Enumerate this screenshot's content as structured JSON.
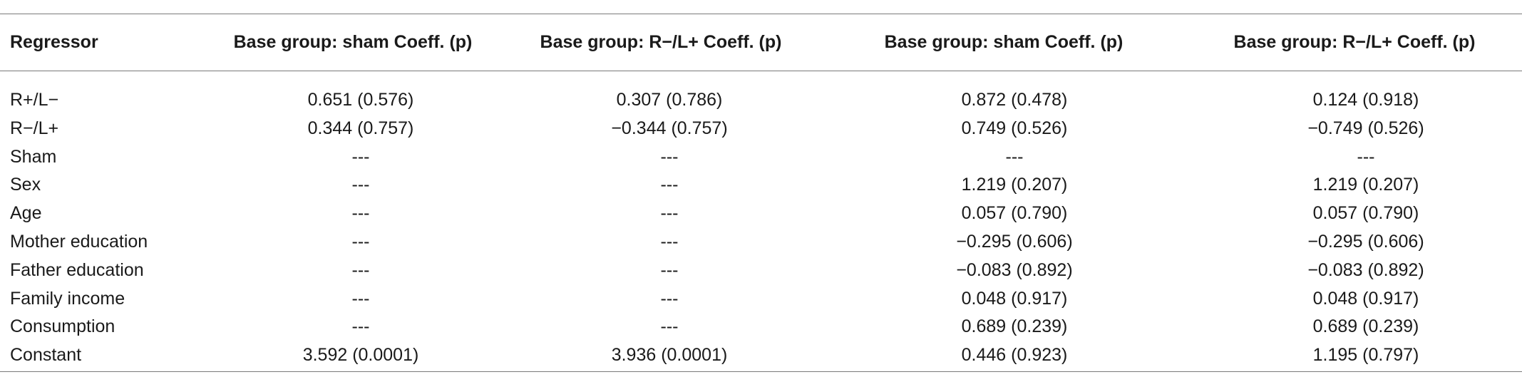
{
  "table": {
    "header": [
      "Regressor",
      "Base group: sham Coeff. (p)",
      "Base group: R−/L+ Coeff. (p)",
      "Base group: sham Coeff. (p)",
      "Base group: R−/L+ Coeff. (p)"
    ],
    "rows": [
      [
        "R+/L−",
        "0.651 (0.576)",
        "0.307 (0.786)",
        "0.872 (0.478)",
        "0.124 (0.918)"
      ],
      [
        "R−/L+",
        "0.344 (0.757)",
        "−0.344 (0.757)",
        "0.749 (0.526)",
        "−0.749 (0.526)"
      ],
      [
        "Sham",
        "---",
        "---",
        "---",
        "---"
      ],
      [
        "Sex",
        "---",
        "---",
        "1.219 (0.207)",
        "1.219 (0.207)"
      ],
      [
        "Age",
        "---",
        "---",
        "0.057 (0.790)",
        "0.057 (0.790)"
      ],
      [
        "Mother education",
        "---",
        "---",
        "−0.295 (0.606)",
        "−0.295 (0.606)"
      ],
      [
        "Father education",
        "---",
        "---",
        "−0.083 (0.892)",
        "−0.083 (0.892)"
      ],
      [
        "Family income",
        "---",
        "---",
        "0.048 (0.917)",
        "0.048 (0.917)"
      ],
      [
        "Consumption",
        "---",
        "---",
        "0.689 (0.239)",
        "0.689 (0.239)"
      ],
      [
        "Constant",
        "3.592 (0.0001)",
        "3.936 (0.0001)",
        "0.446 (0.923)",
        "1.195 (0.797)"
      ]
    ]
  }
}
